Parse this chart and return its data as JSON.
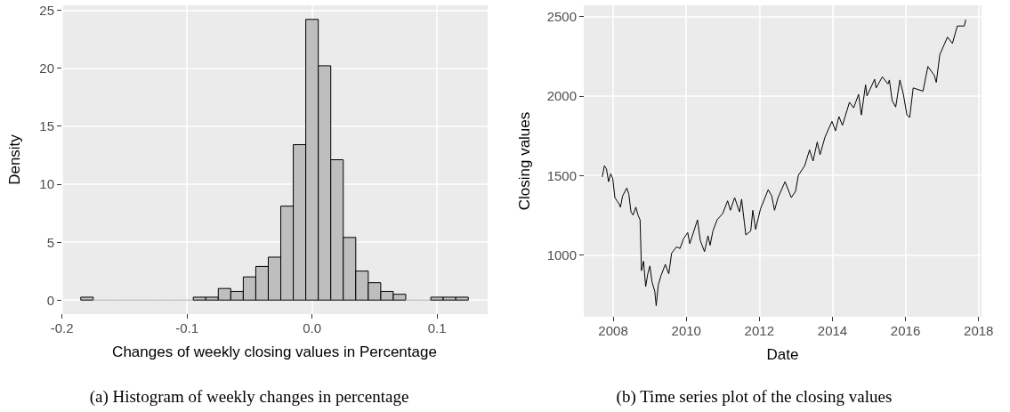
{
  "chart_data": [
    {
      "type": "histogram",
      "xlabel": "Changes of weekly closing values in Percentage",
      "ylabel": "Density",
      "annotations": [
        "(a) Histogram of weekly changes in percentage"
      ],
      "bins": [
        -0.185,
        -0.175,
        -0.165,
        -0.155,
        -0.145,
        -0.135,
        -0.125,
        -0.115,
        -0.105,
        -0.095,
        -0.085,
        -0.075,
        -0.065,
        -0.055,
        -0.045,
        -0.035,
        -0.025,
        -0.015,
        -0.005,
        0.005,
        0.015,
        0.025,
        0.035,
        0.045,
        0.055,
        0.065,
        0.075,
        0.085,
        0.095,
        0.105,
        0.115,
        0.125
      ],
      "values": [
        0.25,
        0,
        0,
        0,
        0,
        0,
        0,
        0,
        0,
        0.25,
        0.25,
        1.0,
        0.75,
        2.0,
        2.9,
        3.7,
        8.1,
        13.4,
        24.2,
        20.2,
        12.1,
        5.4,
        2.5,
        1.5,
        0.75,
        0.5,
        0,
        0,
        0.25,
        0.25,
        0.25
      ],
      "color": "#bebebe",
      "xlim": [
        -0.2005,
        0.1405
      ],
      "xticks": [
        -0.2,
        -0.1,
        {
          "value": 0,
          "label": "0.0"
        },
        0.1
      ],
      "ylim": [
        -1.21,
        25.41
      ],
      "yticks": [
        0,
        5,
        10,
        15,
        20,
        25
      ],
      "grid": true
    },
    {
      "type": "line",
      "xlabel": "Date",
      "ylabel": "Closing values",
      "annotations": [
        "(b) Time series plot of the closing values"
      ],
      "color": "#000000",
      "marker": "none",
      "grid": true,
      "xlim": [
        "2007-03-13",
        "2018-01-30"
      ],
      "xticks": [
        "2008",
        "2010",
        "2012",
        "2014",
        "2016",
        "2018"
      ],
      "ylim": [
        610,
        2570
      ],
      "yticks": [
        1000,
        1500,
        2000,
        2500
      ],
      "x": [
        "2007-09-14",
        "2007-10-05",
        "2007-10-26",
        "2007-11-16",
        "2007-12-07",
        "2007-12-28",
        "2008-01-18",
        "2008-02-08",
        "2008-02-29",
        "2008-03-14",
        "2008-04-04",
        "2008-05-16",
        "2008-06-06",
        "2008-06-27",
        "2008-07-18",
        "2008-08-15",
        "2008-09-05",
        "2008-09-26",
        "2008-10-10",
        "2008-10-31",
        "2008-11-21",
        "2008-12-12",
        "2009-01-02",
        "2009-01-23",
        "2009-02-20",
        "2009-03-06",
        "2009-03-27",
        "2009-04-24",
        "2009-06-05",
        "2009-07-10",
        "2009-08-07",
        "2009-09-25",
        "2009-10-30",
        "2009-12-04",
        "2010-01-15",
        "2010-02-05",
        "2010-04-23",
        "2010-05-21",
        "2010-07-02",
        "2010-08-06",
        "2010-08-27",
        "2010-09-24",
        "2010-11-05",
        "2010-12-31",
        "2011-02-18",
        "2011-03-18",
        "2011-04-29",
        "2011-06-17",
        "2011-07-08",
        "2011-08-05",
        "2011-08-19",
        "2011-10-07",
        "2011-10-28",
        "2011-11-25",
        "2012-01-13",
        "2012-03-30",
        "2012-05-04",
        "2012-06-01",
        "2012-07-06",
        "2012-09-14",
        "2012-11-16",
        "2012-12-28",
        "2013-01-25",
        "2013-03-29",
        "2013-05-17",
        "2013-06-21",
        "2013-08-02",
        "2013-08-30",
        "2013-10-18",
        "2013-12-27",
        "2014-01-31",
        "2014-03-07",
        "2014-04-11",
        "2014-06-20",
        "2014-08-01",
        "2014-09-19",
        "2014-10-17",
        "2014-11-28",
        "2014-12-12",
        "2015-02-27",
        "2015-03-13",
        "2015-05-15",
        "2015-07-10",
        "2015-07-24",
        "2015-08-21",
        "2015-09-25",
        "2015-11-06",
        "2015-12-11",
        "2016-01-15",
        "2016-02-12",
        "2016-03-18",
        "2016-06-24",
        "2016-08-12",
        "2016-10-14",
        "2016-11-04",
        "2016-12-09",
        "2017-02-24",
        "2017-04-14",
        "2017-06-02",
        "2017-08-11",
        "2017-08-25"
      ],
      "values": [
        1490,
        1560,
        1540,
        1460,
        1510,
        1480,
        1360,
        1340,
        1320,
        1300,
        1370,
        1420,
        1380,
        1270,
        1250,
        1300,
        1250,
        1220,
        900,
        960,
        800,
        880,
        930,
        830,
        770,
        680,
        810,
        870,
        940,
        880,
        1010,
        1050,
        1040,
        1100,
        1140,
        1070,
        1220,
        1090,
        1020,
        1120,
        1060,
        1150,
        1220,
        1260,
        1340,
        1280,
        1360,
        1270,
        1350,
        1200,
        1125,
        1150,
        1280,
        1160,
        1290,
        1410,
        1370,
        1280,
        1360,
        1460,
        1360,
        1400,
        1500,
        1560,
        1660,
        1590,
        1710,
        1630,
        1740,
        1840,
        1780,
        1870,
        1815,
        1960,
        1925,
        2010,
        1880,
        2070,
        2000,
        2105,
        2050,
        2120,
        2075,
        2100,
        1970,
        1930,
        2100,
        2010,
        1880,
        1865,
        2050,
        2030,
        2185,
        2130,
        2085,
        2260,
        2370,
        2330,
        2440,
        2440,
        2480
      ]
    }
  ]
}
